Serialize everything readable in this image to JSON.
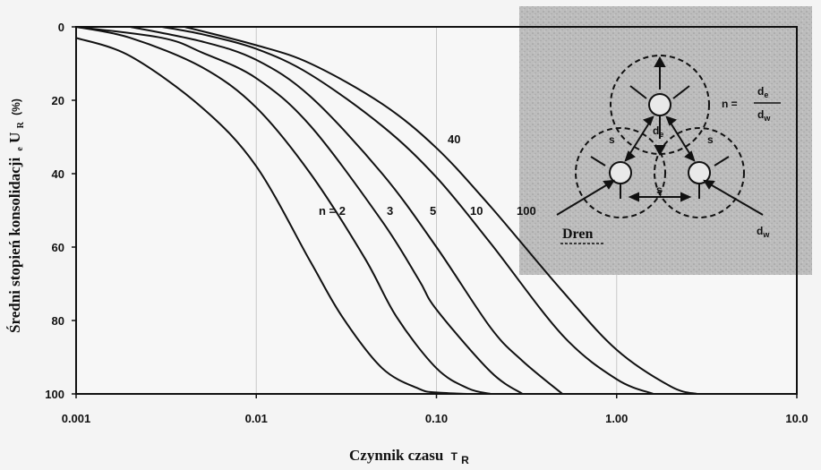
{
  "chart_data": {
    "type": "line",
    "xlabel": "Czynnik czasu",
    "xlabel_unit": "T",
    "xlabel_unit_sub": "R",
    "ylabel": "Średni stopień konsolidacji",
    "ylabel_symbol_prefix": "e",
    "ylabel_symbol": "U",
    "ylabel_symbol_sub": "R",
    "ylabel_unit": "(%)",
    "x_scale": "log",
    "xlim": [
      0.001,
      10.0
    ],
    "ylim": [
      0,
      100
    ],
    "y_inverted": true,
    "xticks": [
      0.001,
      0.01,
      0.1,
      1.0,
      10.0
    ],
    "xtick_labels": [
      "0.001",
      "0.01",
      "0.10",
      "1.00",
      "10.0"
    ],
    "yticks": [
      0,
      20,
      40,
      60,
      80,
      100
    ],
    "ytick_labels": [
      "0",
      "20",
      "40",
      "60",
      "80",
      "100"
    ],
    "vertical_gridlines": true,
    "series": [
      {
        "name": "n = 2",
        "x": [
          0.001,
          0.002,
          0.005,
          0.01,
          0.02,
          0.03,
          0.05,
          0.08,
          0.1,
          0.15
        ],
        "y": [
          3,
          8,
          22,
          38,
          64,
          79,
          93,
          98.6,
          99.6,
          100
        ]
      },
      {
        "name": "3",
        "x": [
          0.001,
          0.002,
          0.005,
          0.01,
          0.02,
          0.04,
          0.06,
          0.1,
          0.15,
          0.2
        ],
        "y": [
          0,
          3,
          11,
          22,
          40,
          63,
          79,
          93,
          98.5,
          100
        ]
      },
      {
        "name": "5",
        "x": [
          0.001,
          0.003,
          0.005,
          0.01,
          0.02,
          0.05,
          0.08,
          0.1,
          0.2,
          0.3
        ],
        "y": [
          0,
          3,
          7,
          14,
          27,
          53,
          69,
          77,
          94,
          100
        ]
      },
      {
        "name": "10",
        "x": [
          0.002,
          0.005,
          0.01,
          0.02,
          0.05,
          0.1,
          0.2,
          0.3,
          0.5
        ],
        "y": [
          0,
          4,
          9,
          19,
          40,
          60,
          82,
          91,
          100
        ]
      },
      {
        "name": "40",
        "x": [
          0.003,
          0.005,
          0.01,
          0.02,
          0.05,
          0.1,
          0.2,
          0.5,
          1.0,
          1.6
        ],
        "y": [
          0,
          2,
          6,
          13,
          27,
          41,
          59,
          84,
          96,
          100
        ]
      },
      {
        "name": "100",
        "x": [
          0.004,
          0.01,
          0.02,
          0.05,
          0.1,
          0.2,
          0.5,
          1.0,
          2.0,
          2.8
        ],
        "y": [
          0,
          5,
          10,
          21,
          33,
          49,
          72,
          88,
          98,
          100
        ]
      }
    ]
  },
  "inset": {
    "formula_lhs": "n =",
    "formula_num": "d",
    "formula_num_sub": "e",
    "formula_den": "d",
    "formula_den_sub": "w",
    "de_label": "d",
    "de_label_sub": "e",
    "s_left": "s",
    "s_right": "s",
    "s_bottom": "s",
    "drain_label": "Dren",
    "dw_label": "d",
    "dw_label_sub": "w"
  },
  "colors": {
    "ink": "#111111",
    "inset_bg": "#b9b9b9",
    "paper": "#f4f4f4",
    "grid": "#c8c8c8"
  }
}
